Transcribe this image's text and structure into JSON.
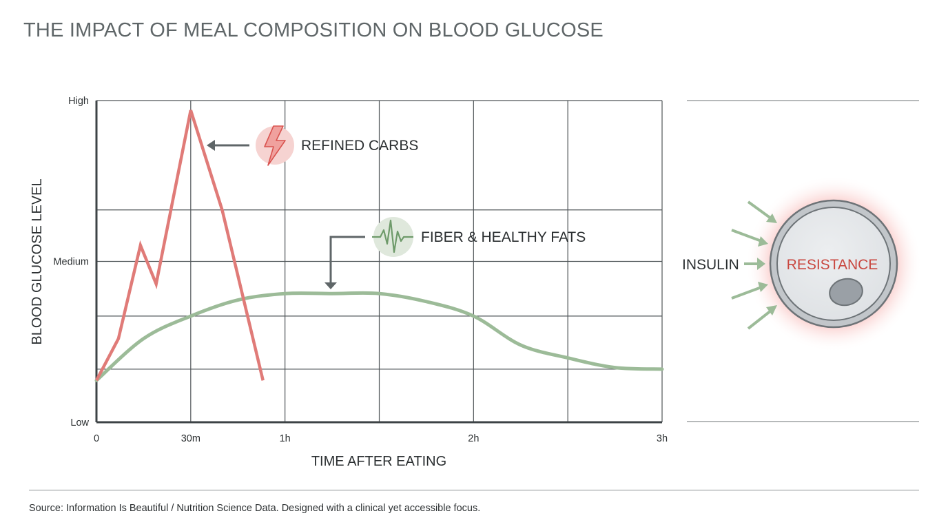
{
  "title": "THE IMPACT OF MEAL COMPOSITION ON BLOOD GLUCOSE",
  "source": "Source: Information Is Beautiful / Nutrition Science Data. Designed with a clinical yet accessible focus.",
  "colors": {
    "refined": "#e07b78",
    "fiber": "#9cbb98",
    "grid": "#4f5558",
    "text": "#2b2f31",
    "resistance": "#c9473f"
  },
  "chart_data": {
    "type": "line",
    "xlabel": "TIME AFTER EATING",
    "ylabel": "BLOOD GLUCOSE LEVEL",
    "x_ticks": [
      {
        "value": 0,
        "label": "0"
      },
      {
        "value": 30,
        "label": "30m"
      },
      {
        "value": 60,
        "label": "1h"
      },
      {
        "value": 120,
        "label": "2h"
      },
      {
        "value": 180,
        "label": "3h"
      }
    ],
    "y_ticks": [
      {
        "value": 0,
        "label": "Low"
      },
      {
        "value": 50,
        "label": "Medium"
      },
      {
        "value": 100,
        "label": "High"
      }
    ],
    "xlim": [
      0,
      180
    ],
    "ylim": [
      0,
      100
    ],
    "x_grid": [
      0,
      30,
      60,
      90,
      120,
      150,
      180
    ],
    "y_grid": [
      0,
      16.5,
      33,
      50,
      66,
      100
    ],
    "series": [
      {
        "name": "REFINED CARBS",
        "color": "#e07b78",
        "icon": "lightning-icon",
        "points": [
          [
            0,
            13
          ],
          [
            7,
            26
          ],
          [
            14,
            55
          ],
          [
            19,
            43
          ],
          [
            30,
            97
          ],
          [
            40,
            66
          ],
          [
            53,
            13
          ]
        ]
      },
      {
        "name": "FIBER & HEALTHY FATS",
        "color": "#9cbb98",
        "icon": "heartbeat-icon",
        "points": [
          [
            0,
            13
          ],
          [
            15,
            26
          ],
          [
            30,
            33
          ],
          [
            45,
            38
          ],
          [
            60,
            40
          ],
          [
            75,
            40
          ],
          [
            90,
            40
          ],
          [
            105,
            37.5
          ],
          [
            120,
            33
          ],
          [
            135,
            24
          ],
          [
            150,
            20
          ],
          [
            165,
            17
          ],
          [
            180,
            16.5
          ]
        ]
      }
    ],
    "grid": true
  },
  "insulin": {
    "label": "INSULIN",
    "cell_label": "RESISTANCE"
  }
}
